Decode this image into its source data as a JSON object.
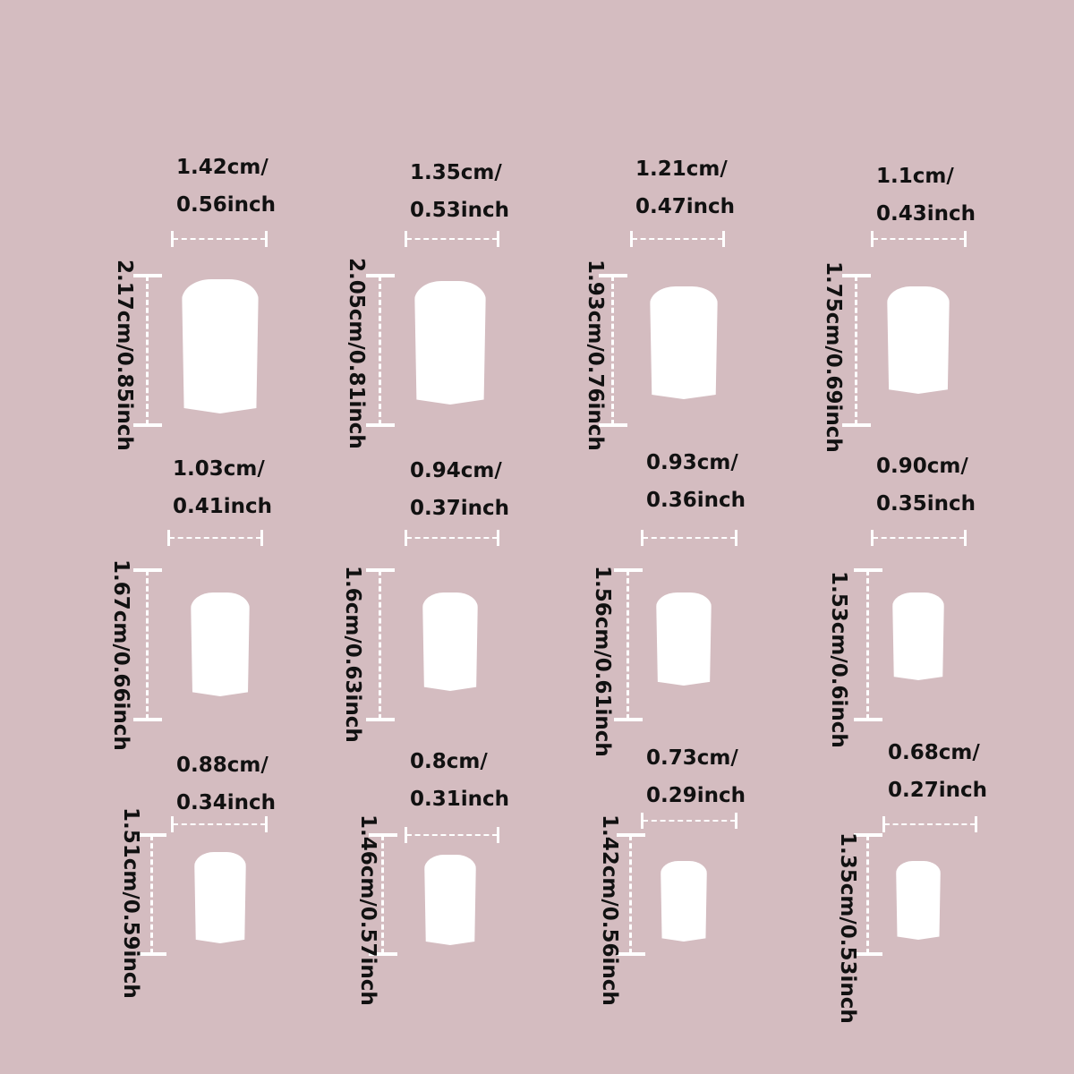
{
  "background_color": "#d4bcc0",
  "nails": [
    {
      "width_cm": "1.42cm/",
      "width_in": "0.56inch",
      "height": "2.17cm/0.85inch"
    },
    {
      "width_cm": "1.35cm/",
      "width_in": "0.53inch",
      "height": "2.05cm/0.81inch"
    },
    {
      "width_cm": "1.21cm/",
      "width_in": "0.47inch",
      "height": "1.93cm/0.76inch"
    },
    {
      "width_cm": "1.1cm/",
      "width_in": "0.43inch",
      "height": "1.75cm/0.69inch"
    },
    {
      "width_cm": "1.03cm/",
      "width_in": "0.41inch",
      "height": "1.67cm/0.66inch"
    },
    {
      "width_cm": "0.94cm/",
      "width_in": "0.37inch",
      "height": "1.6cm/0.63inch"
    },
    {
      "width_cm": "0.93cm/",
      "width_in": "0.36inch",
      "height": "1.56cm/0.61inch"
    },
    {
      "width_cm": "0.90cm/",
      "width_in": "0.35inch",
      "height": "1.53cm/0.6inch"
    },
    {
      "width_cm": "0.88cm/",
      "width_in": "0.34inch",
      "height": "1.51cm/0.59inch"
    },
    {
      "width_cm": "0.8cm/",
      "width_in": "0.31inch",
      "height": "1.46cm/0.57inch"
    },
    {
      "width_cm": "0.73cm/",
      "width_in": "0.29inch",
      "height": "1.42cm/0.56inch"
    },
    {
      "width_cm": "0.68cm/",
      "width_in": "0.27inch",
      "height": "1.35cm/0.53inch"
    }
  ]
}
